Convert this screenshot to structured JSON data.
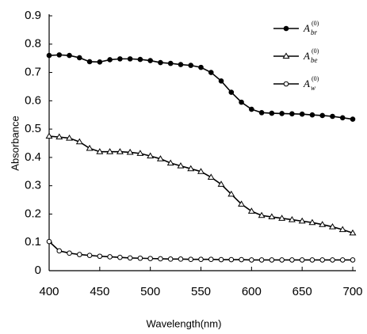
{
  "chart_data": {
    "type": "line",
    "xlabel": "Wavelength(nm)",
    "ylabel": "Absorbance",
    "x": [
      400,
      410,
      420,
      430,
      440,
      450,
      460,
      470,
      480,
      490,
      500,
      510,
      520,
      530,
      540,
      550,
      560,
      570,
      580,
      590,
      600,
      610,
      620,
      630,
      640,
      650,
      660,
      670,
      680,
      690,
      700
    ],
    "series": [
      {
        "name": "A",
        "subscript": "br",
        "superscript": "(0)",
        "color": "#000000",
        "marker": "circle-filled",
        "values": [
          0.76,
          0.762,
          0.76,
          0.752,
          0.738,
          0.737,
          0.745,
          0.748,
          0.748,
          0.746,
          0.742,
          0.735,
          0.732,
          0.728,
          0.725,
          0.718,
          0.7,
          0.67,
          0.63,
          0.595,
          0.57,
          0.558,
          0.556,
          0.555,
          0.554,
          0.553,
          0.55,
          0.548,
          0.545,
          0.54,
          0.535
        ]
      },
      {
        "name": "A",
        "subscript": "be",
        "superscript": "(0)",
        "color": "#000000",
        "marker": "triangle-open",
        "values": [
          0.475,
          0.472,
          0.468,
          0.455,
          0.432,
          0.42,
          0.42,
          0.42,
          0.418,
          0.414,
          0.405,
          0.395,
          0.38,
          0.37,
          0.36,
          0.35,
          0.33,
          0.305,
          0.27,
          0.235,
          0.21,
          0.195,
          0.19,
          0.185,
          0.18,
          0.175,
          0.17,
          0.163,
          0.155,
          0.145,
          0.133
        ]
      },
      {
        "name": "A",
        "subscript": "w",
        "superscript": "(0)",
        "color": "#000000",
        "marker": "circle-open",
        "values": [
          0.103,
          0.07,
          0.062,
          0.057,
          0.054,
          0.051,
          0.049,
          0.047,
          0.045,
          0.044,
          0.043,
          0.042,
          0.041,
          0.041,
          0.04,
          0.04,
          0.04,
          0.039,
          0.039,
          0.039,
          0.038,
          0.038,
          0.038,
          0.038,
          0.038,
          0.038,
          0.038,
          0.038,
          0.038,
          0.038,
          0.038
        ]
      }
    ],
    "xlim": [
      400,
      700
    ],
    "xticks": [
      400,
      450,
      500,
      550,
      600,
      650,
      700
    ],
    "ylim": [
      0,
      0.9
    ],
    "yticks": [
      0,
      0.1,
      0.2,
      0.3,
      0.4,
      0.5,
      0.6,
      0.7,
      0.8,
      0.9
    ],
    "legend": "upper right"
  }
}
